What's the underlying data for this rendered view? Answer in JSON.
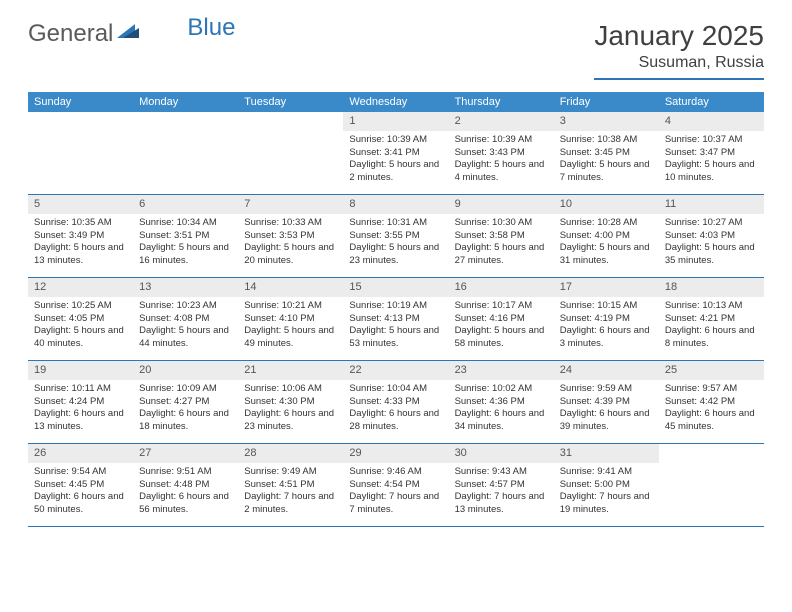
{
  "brand": {
    "part1": "General",
    "part2": "Blue"
  },
  "title": "January 2025",
  "location": "Susuman, Russia",
  "colors": {
    "header_bar": "#3a8ac9",
    "rule": "#2e75b6",
    "daynum_bg": "#ececec",
    "text": "#333333",
    "bg": "#ffffff"
  },
  "dayNames": [
    "Sunday",
    "Monday",
    "Tuesday",
    "Wednesday",
    "Thursday",
    "Friday",
    "Saturday"
  ],
  "weeks": [
    [
      {
        "n": "",
        "sr": "",
        "ss": "",
        "dl": ""
      },
      {
        "n": "",
        "sr": "",
        "ss": "",
        "dl": ""
      },
      {
        "n": "",
        "sr": "",
        "ss": "",
        "dl": ""
      },
      {
        "n": "1",
        "sr": "Sunrise: 10:39 AM",
        "ss": "Sunset: 3:41 PM",
        "dl": "Daylight: 5 hours and 2 minutes."
      },
      {
        "n": "2",
        "sr": "Sunrise: 10:39 AM",
        "ss": "Sunset: 3:43 PM",
        "dl": "Daylight: 5 hours and 4 minutes."
      },
      {
        "n": "3",
        "sr": "Sunrise: 10:38 AM",
        "ss": "Sunset: 3:45 PM",
        "dl": "Daylight: 5 hours and 7 minutes."
      },
      {
        "n": "4",
        "sr": "Sunrise: 10:37 AM",
        "ss": "Sunset: 3:47 PM",
        "dl": "Daylight: 5 hours and 10 minutes."
      }
    ],
    [
      {
        "n": "5",
        "sr": "Sunrise: 10:35 AM",
        "ss": "Sunset: 3:49 PM",
        "dl": "Daylight: 5 hours and 13 minutes."
      },
      {
        "n": "6",
        "sr": "Sunrise: 10:34 AM",
        "ss": "Sunset: 3:51 PM",
        "dl": "Daylight: 5 hours and 16 minutes."
      },
      {
        "n": "7",
        "sr": "Sunrise: 10:33 AM",
        "ss": "Sunset: 3:53 PM",
        "dl": "Daylight: 5 hours and 20 minutes."
      },
      {
        "n": "8",
        "sr": "Sunrise: 10:31 AM",
        "ss": "Sunset: 3:55 PM",
        "dl": "Daylight: 5 hours and 23 minutes."
      },
      {
        "n": "9",
        "sr": "Sunrise: 10:30 AM",
        "ss": "Sunset: 3:58 PM",
        "dl": "Daylight: 5 hours and 27 minutes."
      },
      {
        "n": "10",
        "sr": "Sunrise: 10:28 AM",
        "ss": "Sunset: 4:00 PM",
        "dl": "Daylight: 5 hours and 31 minutes."
      },
      {
        "n": "11",
        "sr": "Sunrise: 10:27 AM",
        "ss": "Sunset: 4:03 PM",
        "dl": "Daylight: 5 hours and 35 minutes."
      }
    ],
    [
      {
        "n": "12",
        "sr": "Sunrise: 10:25 AM",
        "ss": "Sunset: 4:05 PM",
        "dl": "Daylight: 5 hours and 40 minutes."
      },
      {
        "n": "13",
        "sr": "Sunrise: 10:23 AM",
        "ss": "Sunset: 4:08 PM",
        "dl": "Daylight: 5 hours and 44 minutes."
      },
      {
        "n": "14",
        "sr": "Sunrise: 10:21 AM",
        "ss": "Sunset: 4:10 PM",
        "dl": "Daylight: 5 hours and 49 minutes."
      },
      {
        "n": "15",
        "sr": "Sunrise: 10:19 AM",
        "ss": "Sunset: 4:13 PM",
        "dl": "Daylight: 5 hours and 53 minutes."
      },
      {
        "n": "16",
        "sr": "Sunrise: 10:17 AM",
        "ss": "Sunset: 4:16 PM",
        "dl": "Daylight: 5 hours and 58 minutes."
      },
      {
        "n": "17",
        "sr": "Sunrise: 10:15 AM",
        "ss": "Sunset: 4:19 PM",
        "dl": "Daylight: 6 hours and 3 minutes."
      },
      {
        "n": "18",
        "sr": "Sunrise: 10:13 AM",
        "ss": "Sunset: 4:21 PM",
        "dl": "Daylight: 6 hours and 8 minutes."
      }
    ],
    [
      {
        "n": "19",
        "sr": "Sunrise: 10:11 AM",
        "ss": "Sunset: 4:24 PM",
        "dl": "Daylight: 6 hours and 13 minutes."
      },
      {
        "n": "20",
        "sr": "Sunrise: 10:09 AM",
        "ss": "Sunset: 4:27 PM",
        "dl": "Daylight: 6 hours and 18 minutes."
      },
      {
        "n": "21",
        "sr": "Sunrise: 10:06 AM",
        "ss": "Sunset: 4:30 PM",
        "dl": "Daylight: 6 hours and 23 minutes."
      },
      {
        "n": "22",
        "sr": "Sunrise: 10:04 AM",
        "ss": "Sunset: 4:33 PM",
        "dl": "Daylight: 6 hours and 28 minutes."
      },
      {
        "n": "23",
        "sr": "Sunrise: 10:02 AM",
        "ss": "Sunset: 4:36 PM",
        "dl": "Daylight: 6 hours and 34 minutes."
      },
      {
        "n": "24",
        "sr": "Sunrise: 9:59 AM",
        "ss": "Sunset: 4:39 PM",
        "dl": "Daylight: 6 hours and 39 minutes."
      },
      {
        "n": "25",
        "sr": "Sunrise: 9:57 AM",
        "ss": "Sunset: 4:42 PM",
        "dl": "Daylight: 6 hours and 45 minutes."
      }
    ],
    [
      {
        "n": "26",
        "sr": "Sunrise: 9:54 AM",
        "ss": "Sunset: 4:45 PM",
        "dl": "Daylight: 6 hours and 50 minutes."
      },
      {
        "n": "27",
        "sr": "Sunrise: 9:51 AM",
        "ss": "Sunset: 4:48 PM",
        "dl": "Daylight: 6 hours and 56 minutes."
      },
      {
        "n": "28",
        "sr": "Sunrise: 9:49 AM",
        "ss": "Sunset: 4:51 PM",
        "dl": "Daylight: 7 hours and 2 minutes."
      },
      {
        "n": "29",
        "sr": "Sunrise: 9:46 AM",
        "ss": "Sunset: 4:54 PM",
        "dl": "Daylight: 7 hours and 7 minutes."
      },
      {
        "n": "30",
        "sr": "Sunrise: 9:43 AM",
        "ss": "Sunset: 4:57 PM",
        "dl": "Daylight: 7 hours and 13 minutes."
      },
      {
        "n": "31",
        "sr": "Sunrise: 9:41 AM",
        "ss": "Sunset: 5:00 PM",
        "dl": "Daylight: 7 hours and 19 minutes."
      },
      {
        "n": "",
        "sr": "",
        "ss": "",
        "dl": ""
      }
    ]
  ]
}
